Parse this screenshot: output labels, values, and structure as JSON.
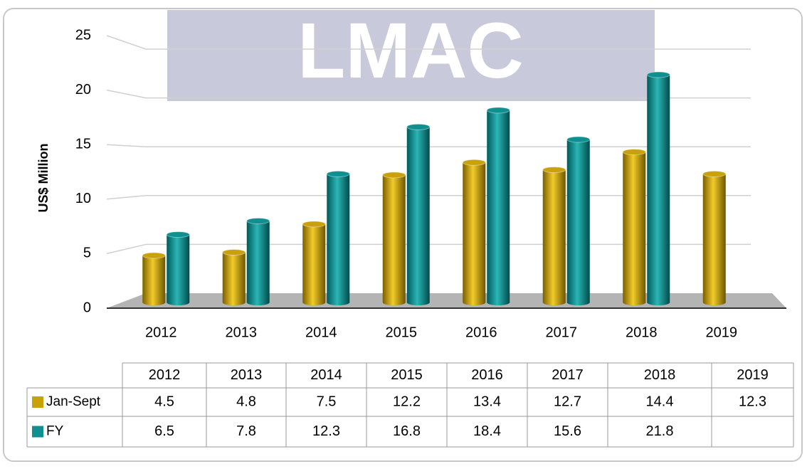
{
  "chart_data": {
    "type": "bar",
    "watermark": "LMAC",
    "y_label": "US$ Million",
    "categories": [
      "2012",
      "2013",
      "2014",
      "2015",
      "2016",
      "2017",
      "2018",
      "2019"
    ],
    "series": [
      {
        "name": "Jan-Sept",
        "color": "#c9a10a",
        "values": [
          4.5,
          4.8,
          7.5,
          12.2,
          13.4,
          12.7,
          14.4,
          12.3
        ]
      },
      {
        "name": "FY",
        "color": "#0f8f8f",
        "values": [
          6.5,
          7.8,
          12.3,
          16.8,
          18.4,
          15.6,
          21.8,
          null
        ]
      }
    ],
    "ylim": [
      0,
      25
    ],
    "yticks": [
      0,
      5,
      10,
      15,
      20,
      25
    ],
    "grid": true
  }
}
